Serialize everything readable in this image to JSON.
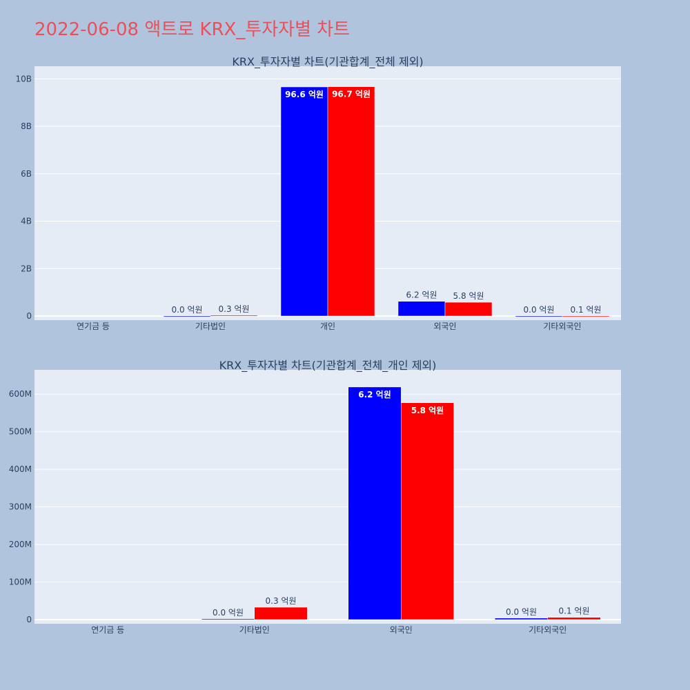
{
  "page": {
    "title": "2022-06-08 액트로 KRX_투자자별 차트"
  },
  "colors": {
    "buy": "#0000ff",
    "sell": "#ff0000",
    "plot_bg": "#e5ecf6",
    "page_bg": "#b0c4de",
    "grid": "#ffffff",
    "title": "#e8505b"
  },
  "chart_data": [
    {
      "type": "bar",
      "title": "KRX_투자자별 차트(기관합계_전체 제외)",
      "categories": [
        "연기금 등",
        "기타법인",
        "개인",
        "외국인",
        "기타외국인"
      ],
      "series": [
        {
          "values": [
            0,
            2000000,
            9660000000,
            620000000,
            4000000
          ],
          "labels": [
            "",
            "0.0 억원",
            "96.6 억원",
            "6.2 억원",
            "0.0 억원"
          ]
        },
        {
          "values": [
            0,
            33000000,
            9670000000,
            580000000,
            6000000
          ],
          "labels": [
            "",
            "0.3 억원",
            "96.7 억원",
            "5.8 억원",
            "0.1 억원"
          ]
        }
      ],
      "ylim": [
        0,
        10300000000
      ],
      "yticks": [
        0,
        2000000000,
        4000000000,
        6000000000,
        8000000000,
        10000000000
      ],
      "yticklabels": [
        "0",
        "2B",
        "4B",
        "6B",
        "8B",
        "10B"
      ],
      "grid": true
    },
    {
      "type": "bar",
      "title": "KRX_투자자별 차트(기관합계_전체_개인 제외)",
      "categories": [
        "연기금 등",
        "기타법인",
        "외국인",
        "기타외국인"
      ],
      "series": [
        {
          "values": [
            0,
            2000000,
            619000000,
            4000000
          ],
          "labels": [
            "",
            "0.0 억원",
            "6.2 억원",
            "0.0 억원"
          ]
        },
        {
          "values": [
            0,
            33000000,
            577000000,
            6000000
          ],
          "labels": [
            "",
            "0.3 억원",
            "5.8 억원",
            "0.1 억원"
          ]
        }
      ],
      "ylim": [
        0,
        650000000
      ],
      "yticks": [
        0,
        100000000,
        200000000,
        300000000,
        400000000,
        500000000,
        600000000
      ],
      "yticklabels": [
        "0",
        "100M",
        "200M",
        "300M",
        "400M",
        "500M",
        "600M"
      ],
      "grid": true
    }
  ]
}
